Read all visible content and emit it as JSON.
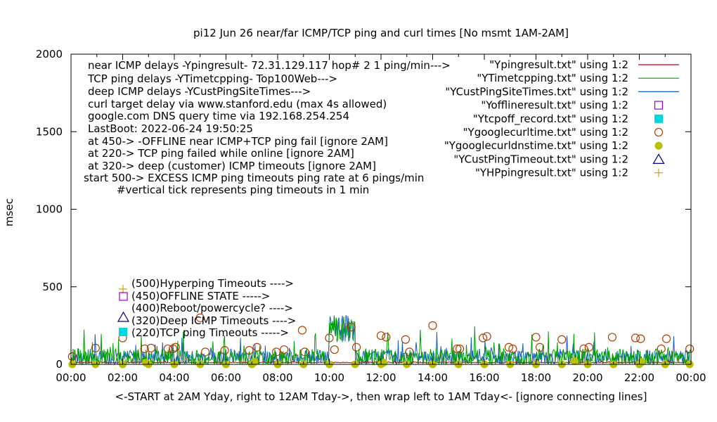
{
  "chart_data": {
    "type": "line",
    "title": "pi12  Jun 26   near/far ICMP/TCP ping and curl times [No msmt 1AM-2AM]",
    "ylabel": "msec",
    "xlabel": "<-START at 2AM Yday, right to 12AM Tday->, then wrap left to 1AM Tday<- [ignore connecting lines]",
    "ylim": [
      0,
      2000
    ],
    "xlim_hours": [
      0,
      24
    ],
    "y_ticks": [
      "0",
      "500",
      "1000",
      "1500",
      "2000"
    ],
    "x_ticks": [
      "00:00",
      "02:00",
      "04:00",
      "06:00",
      "08:00",
      "10:00",
      "12:00",
      "14:00",
      "16:00",
      "18:00",
      "20:00",
      "22:00",
      "00:00"
    ],
    "notes": [
      "near ICMP delays -Ypingresult- 72.31.129.117 hop# 2  1 ping/min--->",
      "TCP ping delays -YTimetcpping- Top100Web--->",
      "deep ICMP delays -YCustPingSiteTimes--->",
      "curl target delay via www.stanford.edu (max 4s allowed)",
      "google.com DNS query time via 192.168.254.254",
      "LastBoot: 2022-06-24 19:50:25",
      "at 450-> -OFFLINE near ICMP+TCP ping fail [ignore 2AM]",
      "at 220-> TCP ping failed while online [ignore 2AM]",
      "at 320-> deep (customer) ICMP timeouts [ignore 2AM]",
      "start 500-> EXCESS ICMP ping timeouts ping rate at 6 pings/min",
      "#vertical tick represents ping timeouts in 1 min"
    ],
    "timeout_labels": [
      "(500)Hyperping Timeouts ---->",
      "(450)OFFLINE STATE ----->",
      "(400)Reboot/powercycle? ---->",
      "(320)Deep ICMP Timeouts ---->",
      "(220)TCP ping Timeouts ----->"
    ],
    "legend_placement": "top-right",
    "series": [
      {
        "name": "\"Ypingresult.txt\" using 1:2",
        "color": "#c00000",
        "marker": "line",
        "baseline": 12,
        "noise": 6
      },
      {
        "name": "\"YTimetcpping.txt\" using 1:2",
        "color": "#00a000",
        "marker": "line",
        "baseline": 40,
        "noise": 120
      },
      {
        "name": "\"YCustPingSiteTimes.txt\" using 1:2",
        "color": "#1060c8",
        "marker": "line",
        "baseline": 45,
        "noise": 90
      },
      {
        "name": "\"Yofflineresult.txt\" using 1:2",
        "color": "#9400d3",
        "marker": "open-square"
      },
      {
        "name": "\"Ytcpoff_record.txt\" using 1:2",
        "color": "#00d8e0",
        "marker": "filled-square"
      },
      {
        "name": "\"Ygooglecurltime.txt\" using 1:2",
        "color": "#b04000",
        "marker": "open-circle",
        "points": [
          [
            0.05,
            50
          ],
          [
            0.95,
            105
          ],
          [
            2.0,
            170
          ],
          [
            2.85,
            100
          ],
          [
            3.1,
            105
          ],
          [
            3.75,
            100
          ],
          [
            3.95,
            100
          ],
          [
            4.05,
            110
          ],
          [
            5.0,
            300
          ],
          [
            5.2,
            80
          ],
          [
            5.95,
            90
          ],
          [
            6.9,
            90
          ],
          [
            7.2,
            110
          ],
          [
            7.95,
            80
          ],
          [
            8.25,
            95
          ],
          [
            8.95,
            220
          ],
          [
            9.05,
            80
          ],
          [
            10.0,
            170
          ],
          [
            10.2,
            95
          ],
          [
            10.85,
            240
          ],
          [
            11.05,
            110
          ],
          [
            12.0,
            185
          ],
          [
            12.2,
            175
          ],
          [
            12.95,
            160
          ],
          [
            13.1,
            80
          ],
          [
            14.0,
            250
          ],
          [
            14.95,
            100
          ],
          [
            15.05,
            100
          ],
          [
            15.95,
            170
          ],
          [
            16.1,
            180
          ],
          [
            16.95,
            110
          ],
          [
            17.1,
            100
          ],
          [
            18.0,
            175
          ],
          [
            18.15,
            110
          ],
          [
            19.0,
            160
          ],
          [
            19.85,
            100
          ],
          [
            20.05,
            110
          ],
          [
            20.95,
            175
          ],
          [
            21.85,
            170
          ],
          [
            22.05,
            165
          ],
          [
            22.85,
            100
          ],
          [
            23.05,
            165
          ],
          [
            23.95,
            100
          ]
        ]
      },
      {
        "name": "\"Ygooglecurldnstime.txt\" using 1:2",
        "color": "#b8c000",
        "marker": "filled-circle",
        "points": [
          [
            0.05,
            0
          ],
          [
            0.95,
            0
          ],
          [
            2.0,
            0
          ],
          [
            3.0,
            0
          ],
          [
            4.0,
            0
          ],
          [
            5.0,
            0
          ],
          [
            6.0,
            0
          ],
          [
            7.0,
            0
          ],
          [
            8.0,
            0
          ],
          [
            9.0,
            0
          ],
          [
            10.0,
            0
          ],
          [
            11.0,
            0
          ],
          [
            12.0,
            0
          ],
          [
            13.0,
            0
          ],
          [
            14.0,
            0
          ],
          [
            15.0,
            0
          ],
          [
            16.0,
            0
          ],
          [
            17.0,
            0
          ],
          [
            18.0,
            0
          ],
          [
            19.0,
            0
          ],
          [
            20.0,
            0
          ],
          [
            21.0,
            0
          ],
          [
            22.0,
            0
          ],
          [
            23.0,
            0
          ],
          [
            23.95,
            0
          ],
          [
            2.9,
            10
          ],
          [
            7.1,
            15
          ],
          [
            12.1,
            10
          ],
          [
            19.5,
            20
          ],
          [
            22.1,
            15
          ]
        ]
      },
      {
        "name": "\"YCustPingTimeout.txt\" using 1:2",
        "color": "#000080",
        "marker": "open-triangle"
      },
      {
        "name": "\"YHPpingresult.txt\" using 1:2",
        "color": "#d8a000",
        "marker": "plus"
      }
    ],
    "burst": {
      "from_hour": 10.0,
      "to_hour": 11.0,
      "low": 140,
      "high": 320
    }
  }
}
